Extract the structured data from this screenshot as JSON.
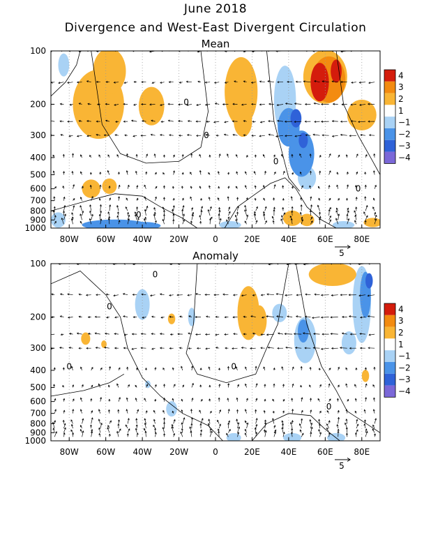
{
  "title": "June 2018",
  "subtitle": "Divergence and West-East Divergent Circulation",
  "colors": {
    "c_neg4": "#7b68d8",
    "c_neg3": "#2f62d8",
    "c_neg2": "#4a93e8",
    "c_neg1": "#a9d2f5",
    "c_zero": "#ffffff",
    "c_pos1": "#ffffff",
    "c_pos2": "#f9b535",
    "c_pos3": "#f38b10",
    "c_pos4": "#d41c0c"
  },
  "chart_data": [
    {
      "type": "heatmap",
      "panel_title": "Mean",
      "x_ticks": [
        "80W",
        "60W",
        "40W",
        "20W",
        "0",
        "20E",
        "40E",
        "60E",
        "80E"
      ],
      "x_tick_values": [
        -80,
        -60,
        -40,
        -20,
        0,
        20,
        40,
        60,
        80
      ],
      "xlim": [
        -90,
        90
      ],
      "y_ticks": [
        "100",
        "200",
        "300",
        "400",
        "500",
        "600",
        "700",
        "800",
        "900",
        "1000"
      ],
      "y_tick_values": [
        100,
        200,
        300,
        400,
        500,
        600,
        700,
        800,
        900,
        1000
      ],
      "ylim": [
        1000,
        100
      ],
      "y_scale": "log",
      "colorbar_labels": [
        "4",
        "3",
        "2",
        "1",
        "−1",
        "−2",
        "−3",
        "−4"
      ],
      "vector_reference": "5",
      "contour_labels": [
        "0",
        "0",
        "0",
        "0",
        "0"
      ],
      "blobs": [
        {
          "lon": -64,
          "p": 200,
          "rx": 14,
          "ry": 0.45,
          "level": 2
        },
        {
          "lon": -58,
          "p": 130,
          "rx": 9,
          "ry": 0.3,
          "level": 2
        },
        {
          "lon": -35,
          "p": 205,
          "rx": 7,
          "ry": 0.25,
          "level": 2
        },
        {
          "lon": -68,
          "p": 600,
          "rx": 5,
          "ry": 0.12,
          "level": 2
        },
        {
          "lon": -58,
          "p": 580,
          "rx": 4,
          "ry": 0.1,
          "level": 2
        },
        {
          "lon": -55,
          "p": 960,
          "rx": 18,
          "ry": 0.07,
          "level": -2
        },
        {
          "lon": -40,
          "p": 970,
          "rx": 10,
          "ry": 0.05,
          "level": -2
        },
        {
          "lon": -83,
          "p": 120,
          "rx": 3,
          "ry": 0.15,
          "level": -1
        },
        {
          "lon": -86,
          "p": 900,
          "rx": 4,
          "ry": 0.1,
          "level": -1
        },
        {
          "lon": 14,
          "p": 170,
          "rx": 9,
          "ry": 0.45,
          "level": 2
        },
        {
          "lon": 15,
          "p": 250,
          "rx": 5,
          "ry": 0.2,
          "level": 2
        },
        {
          "lon": 8,
          "p": 960,
          "rx": 6,
          "ry": 0.05,
          "level": -1
        },
        {
          "lon": 38,
          "p": 190,
          "rx": 6,
          "ry": 0.45,
          "level": -1
        },
        {
          "lon": 40,
          "p": 270,
          "rx": 6,
          "ry": 0.25,
          "level": -2
        },
        {
          "lon": 47,
          "p": 380,
          "rx": 7,
          "ry": 0.3,
          "level": -2
        },
        {
          "lon": 50,
          "p": 520,
          "rx": 5,
          "ry": 0.15,
          "level": -1
        },
        {
          "lon": 44,
          "p": 240,
          "rx": 3,
          "ry": 0.12,
          "level": -3
        },
        {
          "lon": 48,
          "p": 320,
          "rx": 2.5,
          "ry": 0.1,
          "level": -3
        },
        {
          "lon": 42,
          "p": 880,
          "rx": 5,
          "ry": 0.1,
          "level": 2
        },
        {
          "lon": 50,
          "p": 900,
          "rx": 4,
          "ry": 0.08,
          "level": 2
        },
        {
          "lon": 60,
          "p": 140,
          "rx": 12,
          "ry": 0.35,
          "level": 2
        },
        {
          "lon": 62,
          "p": 145,
          "rx": 9,
          "ry": 0.3,
          "level": 3
        },
        {
          "lon": 57,
          "p": 150,
          "rx": 5,
          "ry": 0.25,
          "level": 4
        },
        {
          "lon": 66,
          "p": 130,
          "rx": 3,
          "ry": 0.15,
          "level": 4
        },
        {
          "lon": 80,
          "p": 230,
          "rx": 8,
          "ry": 0.2,
          "level": 2
        },
        {
          "lon": 86,
          "p": 930,
          "rx": 5,
          "ry": 0.06,
          "level": 2
        },
        {
          "lon": 70,
          "p": 960,
          "rx": 6,
          "ry": 0.05,
          "level": -1
        }
      ]
    },
    {
      "type": "heatmap",
      "panel_title": "Anomaly",
      "x_ticks": [
        "80W",
        "60W",
        "40W",
        "20W",
        "0",
        "20E",
        "40E",
        "60E",
        "80E"
      ],
      "x_tick_values": [
        -80,
        -60,
        -40,
        -20,
        0,
        20,
        40,
        60,
        80
      ],
      "xlim": [
        -90,
        90
      ],
      "y_ticks": [
        "100",
        "200",
        "300",
        "400",
        "500",
        "600",
        "700",
        "800",
        "900",
        "1000"
      ],
      "y_tick_values": [
        100,
        200,
        300,
        400,
        500,
        600,
        700,
        800,
        900,
        1000
      ],
      "ylim": [
        1000,
        100
      ],
      "y_scale": "log",
      "colorbar_labels": [
        "4",
        "3",
        "2",
        "1",
        "−1",
        "−2",
        "−3",
        "−4"
      ],
      "vector_reference": "5",
      "contour_labels": [
        "0",
        "0",
        "0",
        "0",
        "0"
      ],
      "blobs": [
        {
          "lon": 64,
          "p": 115,
          "rx": 13,
          "ry": 0.15,
          "level": 2
        },
        {
          "lon": 18,
          "p": 190,
          "rx": 6,
          "ry": 0.35,
          "level": 2
        },
        {
          "lon": 24,
          "p": 210,
          "rx": 4,
          "ry": 0.2,
          "level": 2
        },
        {
          "lon": -24,
          "p": 205,
          "rx": 2,
          "ry": 0.07,
          "level": 2
        },
        {
          "lon": -71,
          "p": 265,
          "rx": 2.5,
          "ry": 0.08,
          "level": 2
        },
        {
          "lon": -61,
          "p": 285,
          "rx": 1.5,
          "ry": 0.05,
          "level": 2
        },
        {
          "lon": 82,
          "p": 430,
          "rx": 2,
          "ry": 0.08,
          "level": 2
        },
        {
          "lon": -40,
          "p": 170,
          "rx": 4,
          "ry": 0.2,
          "level": -1
        },
        {
          "lon": -13,
          "p": 200,
          "rx": 2,
          "ry": 0.12,
          "level": -1
        },
        {
          "lon": 35,
          "p": 190,
          "rx": 4,
          "ry": 0.12,
          "level": -1
        },
        {
          "lon": 49,
          "p": 270,
          "rx": 6,
          "ry": 0.3,
          "level": -1
        },
        {
          "lon": 48,
          "p": 240,
          "rx": 3,
          "ry": 0.15,
          "level": -2
        },
        {
          "lon": 80,
          "p": 170,
          "rx": 5,
          "ry": 0.5,
          "level": -1
        },
        {
          "lon": 82,
          "p": 150,
          "rx": 3,
          "ry": 0.3,
          "level": -2
        },
        {
          "lon": 84,
          "p": 125,
          "rx": 2,
          "ry": 0.1,
          "level": -3
        },
        {
          "lon": 73,
          "p": 280,
          "rx": 4,
          "ry": 0.15,
          "level": -1
        },
        {
          "lon": -24,
          "p": 660,
          "rx": 3,
          "ry": 0.1,
          "level": -1
        },
        {
          "lon": -37,
          "p": 480,
          "rx": 1.5,
          "ry": 0.05,
          "level": -1
        },
        {
          "lon": 10,
          "p": 960,
          "rx": 4,
          "ry": 0.06,
          "level": -1
        },
        {
          "lon": 42,
          "p": 960,
          "rx": 5,
          "ry": 0.06,
          "level": -1
        },
        {
          "lon": 66,
          "p": 960,
          "rx": 5,
          "ry": 0.06,
          "level": -1
        }
      ]
    }
  ]
}
